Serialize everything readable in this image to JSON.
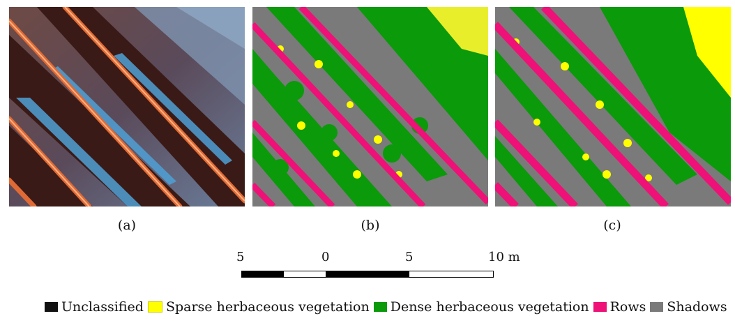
{
  "panels": [
    {
      "id": "a",
      "caption": "(a)"
    },
    {
      "id": "b",
      "caption": "(b)"
    },
    {
      "id": "c",
      "caption": "(c)"
    }
  ],
  "scale": {
    "labels": [
      "5",
      "0",
      "5",
      "10 m"
    ]
  },
  "legend": [
    {
      "label": "Unclassified",
      "color": "#111111"
    },
    {
      "label": "Sparse herbaceous vegetation",
      "color": "#ffff00"
    },
    {
      "label": "Dense herbaceous vegetation",
      "color": "#0a9a0a"
    },
    {
      "label": "Rows",
      "color": "#ee1177"
    },
    {
      "label": "Shadows",
      "color": "#7a7a7a"
    }
  ]
}
